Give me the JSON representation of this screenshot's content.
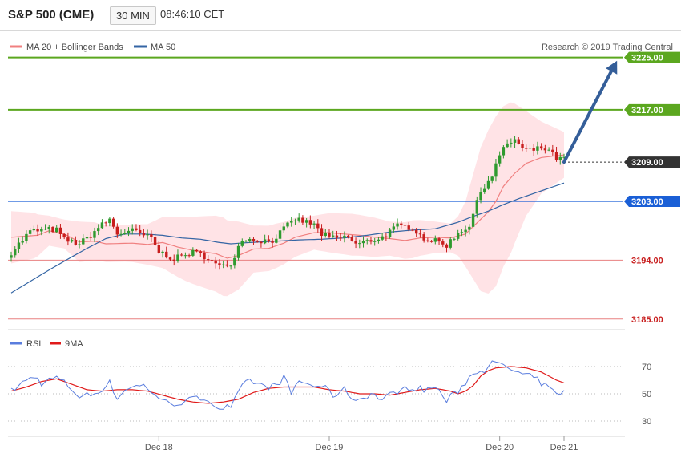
{
  "header": {
    "title": "S&P 500 (CME)",
    "timeframe": "30 MIN",
    "time": "08:46:10 CET"
  },
  "legend": {
    "ma20": "MA 20 + Bollinger Bands",
    "ma50": "MA 50",
    "credit": "Research © 2019 Trading Central"
  },
  "colors": {
    "up": "#2f9a2f",
    "down": "#c81e1e",
    "bollinger_fill": "#ffe3e6",
    "ma20": "#f08080",
    "ma50": "#3465a4",
    "target": "#5ba71f",
    "pivot": "#1a5fd6",
    "support": "#e88080",
    "arrow": "#345e99",
    "rsi": "#5a7dde",
    "rsi_ma": "#e01a1a"
  },
  "levels": [
    {
      "value": 3225.0,
      "label": "3225.00",
      "kind": "target"
    },
    {
      "value": 3217.0,
      "label": "3217.00",
      "kind": "target"
    },
    {
      "value": 3209.0,
      "label": "3209.00",
      "kind": "last"
    },
    {
      "value": 3203.0,
      "label": "3203.00",
      "kind": "pivot"
    },
    {
      "value": 3194.0,
      "label": "3194.00",
      "kind": "support"
    },
    {
      "value": 3185.0,
      "label": "3185.00",
      "kind": "support"
    }
  ],
  "rsi_panel": {
    "legend_rsi": "RSI",
    "legend_ma": "9MA",
    "ticks": [
      {
        "value": 70,
        "label": "70"
      },
      {
        "value": 50,
        "label": "50"
      },
      {
        "value": 30,
        "label": "30"
      }
    ],
    "ylim": [
      20,
      80
    ]
  },
  "x_axis": {
    "labels": [
      {
        "index": 39,
        "label": "Dec 18"
      },
      {
        "index": 84,
        "label": "Dec 19"
      },
      {
        "index": 129,
        "label": "Dec 20"
      },
      {
        "index": 146,
        "label": "Dec 21"
      }
    ]
  },
  "chart_data": {
    "type": "candlestick",
    "ylim": [
      3183.5,
      3229.0
    ],
    "series": {
      "close_anchors": [
        [
          0,
          3195.2
        ],
        [
          5,
          3198.4
        ],
        [
          10,
          3198.7
        ],
        [
          12,
          3198.6
        ],
        [
          14,
          3197.1
        ],
        [
          18,
          3196.5
        ],
        [
          21,
          3197.8
        ],
        [
          23,
          3199.0
        ],
        [
          26,
          3200.2
        ],
        [
          28,
          3198.0
        ],
        [
          32,
          3198.5
        ],
        [
          35,
          3197.8
        ],
        [
          37,
          3197.3
        ],
        [
          39,
          3195.3
        ],
        [
          43,
          3194.2
        ],
        [
          48,
          3195.2
        ],
        [
          52,
          3194.4
        ],
        [
          54,
          3193.3
        ],
        [
          56,
          3193.0
        ],
        [
          58,
          3193.5
        ],
        [
          61,
          3197.3
        ],
        [
          66,
          3197.0
        ],
        [
          69,
          3197.0
        ],
        [
          72,
          3198.8
        ],
        [
          75,
          3200.3
        ],
        [
          78,
          3199.8
        ],
        [
          80,
          3199.4
        ],
        [
          82,
          3198.0
        ],
        [
          84,
          3197.5
        ],
        [
          86,
          3197.3
        ],
        [
          89,
          3197.6
        ],
        [
          91,
          3196.4
        ],
        [
          95,
          3197.0
        ],
        [
          98,
          3197.5
        ],
        [
          102,
          3199.2
        ],
        [
          106,
          3199.0
        ],
        [
          109,
          3197.3
        ],
        [
          112,
          3196.9
        ],
        [
          115,
          3196.3
        ],
        [
          118,
          3198.2
        ],
        [
          121,
          3199.3
        ],
        [
          124,
          3204.5
        ],
        [
          127,
          3207.0
        ],
        [
          129,
          3210.1
        ],
        [
          131,
          3211.7
        ],
        [
          133,
          3212.5
        ],
        [
          135,
          3211.0
        ],
        [
          138,
          3210.8
        ],
        [
          140,
          3211.2
        ],
        [
          142,
          3210.7
        ],
        [
          144,
          3209.6
        ],
        [
          146,
          3209.4
        ]
      ],
      "ma20_anchors": [
        [
          0,
          3197.5
        ],
        [
          7,
          3197.8
        ],
        [
          10,
          3198.5
        ],
        [
          14,
          3198.0
        ],
        [
          18,
          3196.8
        ],
        [
          22,
          3196.9
        ],
        [
          25,
          3196.5
        ],
        [
          32,
          3196.6
        ],
        [
          36,
          3196.4
        ],
        [
          40,
          3196.7
        ],
        [
          44,
          3196.0
        ],
        [
          48,
          3195.5
        ],
        [
          54,
          3195.0
        ],
        [
          57,
          3194.3
        ],
        [
          60,
          3194.7
        ],
        [
          64,
          3195.7
        ],
        [
          68,
          3195.8
        ],
        [
          72,
          3196.6
        ],
        [
          75,
          3197.5
        ],
        [
          80,
          3198.2
        ],
        [
          84,
          3198.2
        ],
        [
          88,
          3198.0
        ],
        [
          92,
          3197.8
        ],
        [
          96,
          3197.5
        ],
        [
          100,
          3197.3
        ],
        [
          104,
          3197.0
        ],
        [
          108,
          3197.4
        ],
        [
          112,
          3197.5
        ],
        [
          116,
          3197.4
        ],
        [
          120,
          3198.0
        ],
        [
          123,
          3199.7
        ],
        [
          126,
          3201.4
        ],
        [
          128,
          3203.0
        ],
        [
          130,
          3205.3
        ],
        [
          133,
          3207.3
        ],
        [
          136,
          3208.8
        ],
        [
          140,
          3209.7
        ],
        [
          146,
          3210.1
        ]
      ],
      "bb_width_anchors": [
        [
          0,
          4.0
        ],
        [
          6,
          3.5
        ],
        [
          10,
          2.3
        ],
        [
          14,
          2.2
        ],
        [
          18,
          3.1
        ],
        [
          24,
          2.8
        ],
        [
          30,
          2.8
        ],
        [
          36,
          3.1
        ],
        [
          40,
          3.9
        ],
        [
          46,
          4.9
        ],
        [
          52,
          5.6
        ],
        [
          56,
          6.0
        ],
        [
          60,
          5.2
        ],
        [
          64,
          3.6
        ],
        [
          70,
          3.4
        ],
        [
          76,
          2.9
        ],
        [
          80,
          2.6
        ],
        [
          84,
          3.0
        ],
        [
          90,
          3.2
        ],
        [
          96,
          3.0
        ],
        [
          100,
          2.6
        ],
        [
          106,
          2.9
        ],
        [
          112,
          2.4
        ],
        [
          116,
          2.2
        ],
        [
          118,
          3.0
        ],
        [
          120,
          5.0
        ],
        [
          122,
          8.0
        ],
        [
          124,
          11.0
        ],
        [
          126,
          12.5
        ],
        [
          128,
          13.0
        ],
        [
          132,
          11.5
        ],
        [
          136,
          8.0
        ],
        [
          140,
          5.5
        ],
        [
          146,
          3.5
        ]
      ],
      "ma50_anchors": [
        [
          0,
          3189.0
        ],
        [
          10,
          3192.5
        ],
        [
          16,
          3194.5
        ],
        [
          20,
          3195.8
        ],
        [
          25,
          3197.3
        ],
        [
          30,
          3198.0
        ],
        [
          35,
          3198.0
        ],
        [
          40,
          3197.8
        ],
        [
          45,
          3197.4
        ],
        [
          50,
          3197.2
        ],
        [
          55,
          3196.7
        ],
        [
          58,
          3196.5
        ],
        [
          63,
          3196.7
        ],
        [
          70,
          3196.9
        ],
        [
          76,
          3197.1
        ],
        [
          82,
          3197.2
        ],
        [
          88,
          3197.4
        ],
        [
          94,
          3197.8
        ],
        [
          100,
          3198.3
        ],
        [
          106,
          3198.6
        ],
        [
          112,
          3198.8
        ],
        [
          118,
          3199.8
        ],
        [
          122,
          3200.7
        ],
        [
          126,
          3201.5
        ],
        [
          130,
          3202.5
        ],
        [
          134,
          3203.4
        ],
        [
          140,
          3204.6
        ],
        [
          146,
          3205.8
        ]
      ],
      "rsi_anchors": [
        [
          0,
          52
        ],
        [
          3,
          58
        ],
        [
          6,
          63
        ],
        [
          8,
          58
        ],
        [
          12,
          62
        ],
        [
          15,
          56
        ],
        [
          18,
          48
        ],
        [
          22,
          50
        ],
        [
          26,
          58
        ],
        [
          28,
          47
        ],
        [
          31,
          55
        ],
        [
          35,
          56
        ],
        [
          38,
          50
        ],
        [
          40,
          44
        ],
        [
          44,
          43
        ],
        [
          48,
          46
        ],
        [
          52,
          47
        ],
        [
          54,
          40
        ],
        [
          58,
          40
        ],
        [
          61,
          55
        ],
        [
          63,
          60
        ],
        [
          67,
          55
        ],
        [
          70,
          56
        ],
        [
          72,
          62
        ],
        [
          74,
          50
        ],
        [
          76,
          60
        ],
        [
          79,
          56
        ],
        [
          82,
          56
        ],
        [
          85,
          49
        ],
        [
          88,
          53
        ],
        [
          91,
          45
        ],
        [
          95,
          50
        ],
        [
          98,
          46
        ],
        [
          102,
          52
        ],
        [
          106,
          55
        ],
        [
          109,
          53
        ],
        [
          112,
          55
        ],
        [
          115,
          45
        ],
        [
          118,
          52
        ],
        [
          121,
          62
        ],
        [
          123,
          67
        ],
        [
          125,
          68
        ],
        [
          126,
          72
        ],
        [
          128,
          72
        ],
        [
          130,
          70
        ],
        [
          132,
          68
        ],
        [
          134,
          65
        ],
        [
          136,
          63
        ],
        [
          138,
          62
        ],
        [
          140,
          58
        ],
        [
          143,
          52
        ],
        [
          146,
          51
        ]
      ],
      "rsi_ma_anchors": [
        [
          0,
          52
        ],
        [
          4,
          55
        ],
        [
          8,
          59
        ],
        [
          12,
          61
        ],
        [
          16,
          57
        ],
        [
          20,
          53
        ],
        [
          24,
          52
        ],
        [
          28,
          53
        ],
        [
          32,
          53
        ],
        [
          36,
          52
        ],
        [
          40,
          49
        ],
        [
          44,
          46
        ],
        [
          48,
          44
        ],
        [
          52,
          43
        ],
        [
          56,
          44
        ],
        [
          60,
          46
        ],
        [
          64,
          51
        ],
        [
          68,
          54
        ],
        [
          72,
          55
        ],
        [
          76,
          55
        ],
        [
          80,
          55
        ],
        [
          84,
          53
        ],
        [
          88,
          52
        ],
        [
          92,
          50
        ],
        [
          96,
          50
        ],
        [
          100,
          49
        ],
        [
          104,
          51
        ],
        [
          108,
          53
        ],
        [
          112,
          54
        ],
        [
          116,
          52
        ],
        [
          118,
          50
        ],
        [
          120,
          52
        ],
        [
          122,
          56
        ],
        [
          124,
          63
        ],
        [
          126,
          67
        ],
        [
          128,
          69
        ],
        [
          132,
          70
        ],
        [
          136,
          69
        ],
        [
          140,
          66
        ],
        [
          144,
          60
        ],
        [
          146,
          58
        ]
      ]
    },
    "projection": {
      "from_index": 146,
      "from_value": 3209.0,
      "to_index": 160,
      "to_value": 3224.5
    }
  }
}
